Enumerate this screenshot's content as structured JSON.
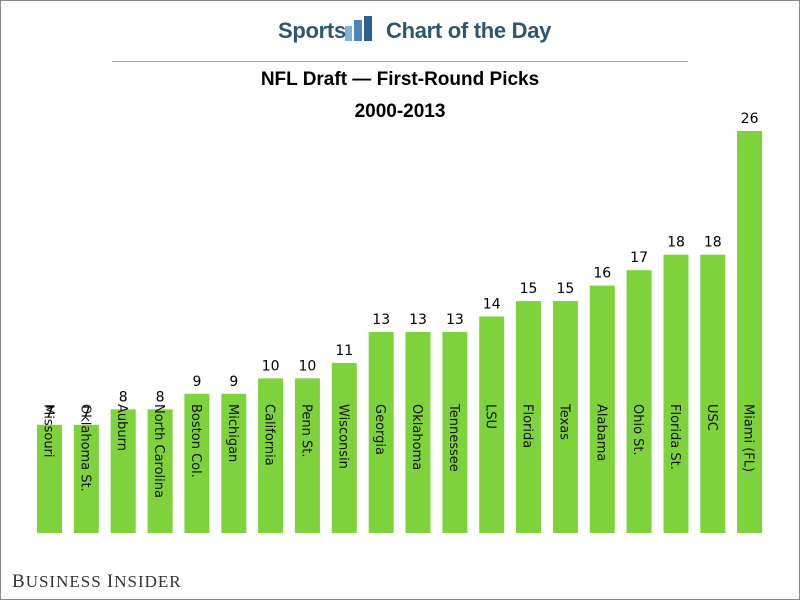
{
  "header": {
    "left_label": "Sports",
    "right_label": "Chart of the Day",
    "logo_icon": "bar-chart-icon"
  },
  "footer": {
    "brand": "Business Insider"
  },
  "colors": {
    "bar": "#7ed23c",
    "header_text": "#2f5670",
    "rule": "#9fb0bd"
  },
  "chart_data": {
    "type": "bar",
    "title": "NFL Draft — First-Round Picks",
    "subtitle": "2000-2013",
    "xlabel": "",
    "ylabel": "",
    "ylim": [
      0,
      27
    ],
    "grid": false,
    "categories": [
      "Missouri",
      "Oklahoma St.",
      "Auburn",
      "North Carolina",
      "Boston Col.",
      "Michigan",
      "California",
      "Penn St.",
      "Wisconsin",
      "Georgia",
      "Oklahoma",
      "Tennessee",
      "LSU",
      "Florida",
      "Texas",
      "Alabama",
      "Ohio St.",
      "Florida St.",
      "USC",
      "Miami (FL)"
    ],
    "values": [
      7,
      7,
      8,
      8,
      9,
      9,
      10,
      10,
      11,
      13,
      13,
      13,
      14,
      15,
      15,
      16,
      17,
      18,
      18,
      26
    ]
  }
}
